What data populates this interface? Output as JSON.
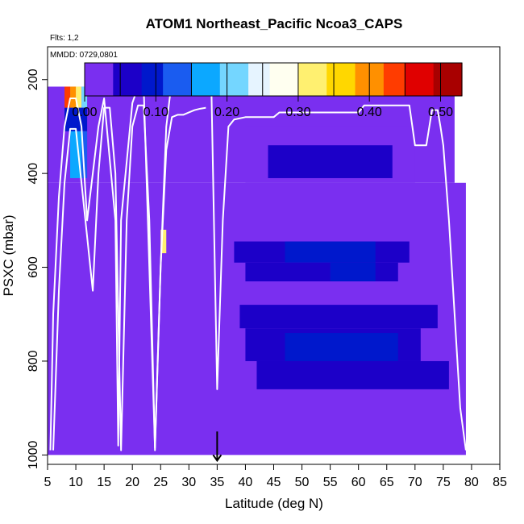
{
  "chart_data": {
    "type": "heatmap",
    "title": "ATOM1 Northeast_Pacific Ncoa3_CAPS",
    "flights_label": "Flts: 1,2",
    "dates_label": "MMDD: 0729,0801",
    "xlabel": "Latitude (deg N)",
    "ylabel": "PSXC (mbar)",
    "xlim": [
      5,
      85
    ],
    "ylim": [
      1020,
      130
    ],
    "y_inverted": true,
    "x_ticks": [
      "5",
      "10",
      "15",
      "20",
      "25",
      "30",
      "35",
      "40",
      "45",
      "50",
      "55",
      "60",
      "65",
      "70",
      "75",
      "80",
      "85"
    ],
    "y_ticks": [
      "200",
      "400",
      "600",
      "800",
      "1000"
    ],
    "colorbar": {
      "range": [
        0,
        0.53
      ],
      "tick_labels": [
        "0.00",
        "0.10",
        "0.20",
        "0.30",
        "0.40",
        "0.50"
      ],
      "tick_values": [
        0,
        0.1,
        0.2,
        0.3,
        0.4,
        0.5
      ],
      "colors": [
        "#7a2ff0",
        "#1c00c8",
        "#0018cc",
        "#1a5cf0",
        "#0ca8ff",
        "#74d6ff",
        "#e6f4ff",
        "#fffff0",
        "#fff070",
        "#ffd700",
        "#ff9000",
        "#ff3c00",
        "#e00000",
        "#a80000"
      ]
    },
    "background_value": 0.0,
    "cells": [
      {
        "lat": [
          5,
          77
        ],
        "p": [
          215,
          420
        ],
        "v": 0.0
      },
      {
        "lat": [
          26,
          32
        ],
        "p": [
          165,
          215
        ],
        "v": 0.0
      },
      {
        "lat": [
          5,
          79
        ],
        "p": [
          420,
          1000
        ],
        "v": 0.0
      },
      {
        "lat": [
          40,
          70
        ],
        "p": [
          300,
          420
        ],
        "v": 0.02
      },
      {
        "lat": [
          44,
          66
        ],
        "p": [
          340,
          410
        ],
        "v": 0.04
      },
      {
        "lat": [
          38,
          69
        ],
        "p": [
          545,
          590
        ],
        "v": 0.06
      },
      {
        "lat": [
          47,
          63
        ],
        "p": [
          545,
          590
        ],
        "v": 0.1
      },
      {
        "lat": [
          40,
          67
        ],
        "p": [
          590,
          630
        ],
        "v": 0.05
      },
      {
        "lat": [
          55,
          63
        ],
        "p": [
          590,
          630
        ],
        "v": 0.1
      },
      {
        "lat": [
          39,
          74
        ],
        "p": [
          680,
          730
        ],
        "v": 0.04
      },
      {
        "lat": [
          40,
          71
        ],
        "p": [
          730,
          800
        ],
        "v": 0.07
      },
      {
        "lat": [
          47,
          67
        ],
        "p": [
          740,
          800
        ],
        "v": 0.1
      },
      {
        "lat": [
          42,
          76
        ],
        "p": [
          800,
          860
        ],
        "v": 0.05
      },
      {
        "lat": [
          8,
          9
        ],
        "p": [
          215,
          260
        ],
        "v": 0.45
      },
      {
        "lat": [
          9,
          10
        ],
        "p": [
          215,
          260
        ],
        "v": 0.4
      },
      {
        "lat": [
          10,
          11
        ],
        "p": [
          215,
          260
        ],
        "v": 0.33
      },
      {
        "lat": [
          11,
          12
        ],
        "p": [
          215,
          260
        ],
        "v": 0.22
      },
      {
        "lat": [
          8,
          12
        ],
        "p": [
          260,
          310
        ],
        "v": 0.08
      },
      {
        "lat": [
          9,
          11
        ],
        "p": [
          310,
          410
        ],
        "v": 0.18
      },
      {
        "lat": [
          11,
          12
        ],
        "p": [
          310,
          410
        ],
        "v": 0.12
      },
      {
        "lat": [
          25,
          26
        ],
        "p": [
          520,
          570
        ],
        "v": 0.33
      }
    ],
    "series": [
      {
        "style": "solid",
        "lat": [
          5.5,
          6,
          7,
          8,
          9,
          10,
          11,
          12,
          14,
          15,
          17,
          17.5,
          18,
          20,
          21,
          22,
          23,
          24,
          25,
          26,
          27,
          28,
          33,
          34,
          35,
          36,
          37,
          38,
          40,
          45,
          46,
          60,
          61,
          66,
          69,
          70,
          71,
          72,
          73,
          74,
          74.5,
          75,
          76,
          77,
          78,
          79
        ],
        "p": [
          990,
          700,
          450,
          300,
          240,
          240,
          300,
          500,
          300,
          240,
          500,
          980,
          500,
          250,
          215,
          215,
          600,
          985,
          600,
          300,
          200,
          195,
          195,
          230,
          860,
          500,
          300,
          285,
          280,
          280,
          270,
          270,
          255,
          255,
          255,
          340,
          340,
          340,
          265,
          265,
          300,
          340,
          500,
          700,
          900,
          990
        ]
      },
      {
        "style": "solid",
        "lat": [
          6,
          7,
          8,
          9,
          10,
          11,
          13,
          14,
          15,
          16,
          17,
          18,
          19,
          20,
          21,
          22,
          23,
          24,
          25,
          26,
          27,
          28,
          29,
          30,
          31,
          32,
          33
        ],
        "p": [
          990,
          650,
          420,
          305,
          305,
          420,
          650,
          400,
          260,
          260,
          400,
          990,
          500,
          300,
          255,
          255,
          500,
          990,
          600,
          350,
          280,
          275,
          275,
          270,
          265,
          262,
          260
        ]
      }
    ],
    "annotations": [
      {
        "type": "arrow",
        "lat": 35,
        "p_from": 950,
        "p_to": 1012
      }
    ]
  }
}
